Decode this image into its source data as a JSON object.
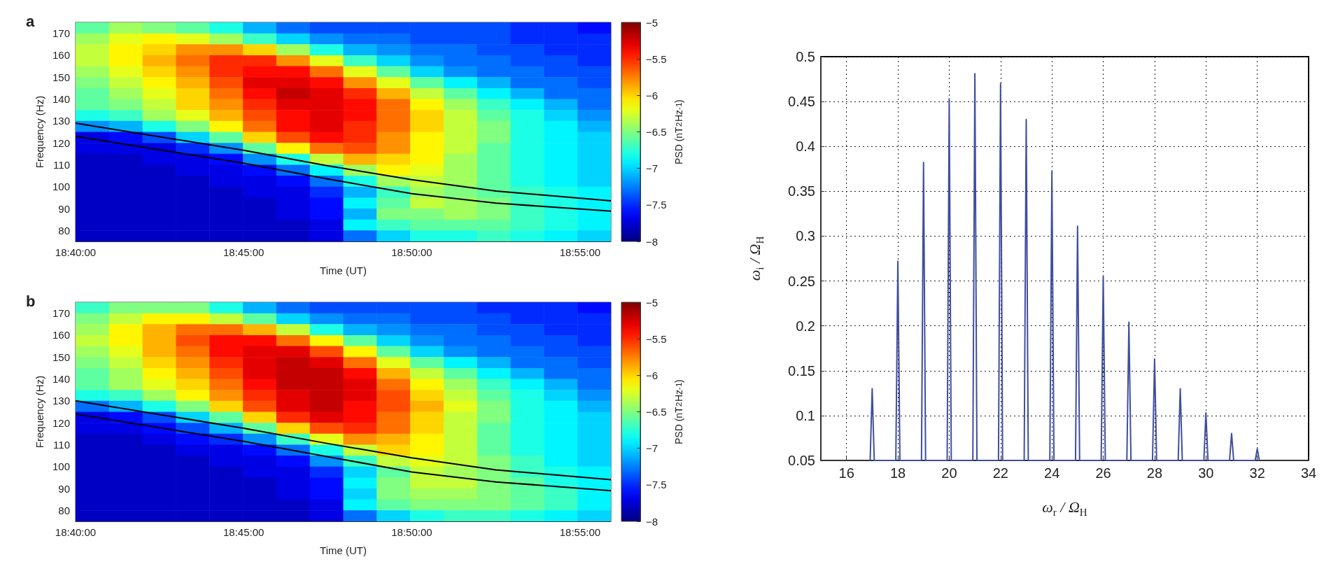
{
  "chart_data": [
    {
      "type": "heatmap",
      "title": "a",
      "xlabel": "Time (UT)",
      "ylabel": "Frequency (Hz)",
      "clabel": "PSD (nT$^{2}$Hz$^{-1}$)",
      "xlim": [
        18.6667,
        18.932
      ],
      "ylim": [
        75,
        175
      ],
      "xticks": [
        {
          "value": 18.6667,
          "label": "18:40:00"
        },
        {
          "value": 18.75,
          "label": "18:45:00"
        },
        {
          "value": 18.8333,
          "label": "18:50:00"
        },
        {
          "value": 18.9167,
          "label": "18:55:00"
        }
      ],
      "yticks": [
        80,
        90,
        100,
        110,
        120,
        130,
        140,
        150,
        160,
        170
      ],
      "clim": [
        -8,
        -5
      ],
      "cticks": [
        {
          "value": -8,
          "label": "−8"
        },
        {
          "value": -7.5,
          "label": "−7.5"
        },
        {
          "value": -7,
          "label": "−7"
        },
        {
          "value": -6.5,
          "label": "−6.5"
        },
        {
          "value": -6,
          "label": "−6"
        },
        {
          "value": -5.5,
          "label": "−5.5"
        },
        {
          "value": -5,
          "label": "−5"
        }
      ],
      "cells": [
        [
          -6.6,
          -6.4,
          -6.5,
          -6.6,
          -6.8,
          -7.1,
          -7.3,
          -7.4,
          -7.4,
          -7.4,
          -7.4,
          -7.4,
          -7.4,
          -7.5,
          -7.5,
          -7.6
        ],
        [
          -6.4,
          -6.2,
          -6.1,
          -6.2,
          -6.4,
          -6.7,
          -7.0,
          -7.2,
          -7.3,
          -7.3,
          -7.4,
          -7.4,
          -7.4,
          -7.5,
          -7.5,
          -7.5
        ],
        [
          -6.3,
          -6.1,
          -6.0,
          -5.8,
          -5.8,
          -6.0,
          -6.4,
          -6.8,
          -7.1,
          -7.2,
          -7.3,
          -7.3,
          -7.4,
          -7.4,
          -7.5,
          -7.5
        ],
        [
          -6.3,
          -6.1,
          -5.9,
          -5.7,
          -5.5,
          -5.5,
          -5.8,
          -6.2,
          -6.7,
          -7.0,
          -7.2,
          -7.3,
          -7.3,
          -7.4,
          -7.4,
          -7.5
        ],
        [
          -6.4,
          -6.2,
          -6.0,
          -5.8,
          -5.5,
          -5.4,
          -5.4,
          -5.7,
          -6.2,
          -6.6,
          -7.0,
          -7.2,
          -7.3,
          -7.3,
          -7.4,
          -7.4
        ],
        [
          -6.5,
          -6.3,
          -6.1,
          -5.9,
          -5.6,
          -5.3,
          -5.3,
          -5.4,
          -5.8,
          -6.2,
          -6.6,
          -6.9,
          -7.1,
          -7.3,
          -7.3,
          -7.4
        ],
        [
          -6.6,
          -6.4,
          -6.2,
          -6.0,
          -5.7,
          -5.4,
          -5.2,
          -5.3,
          -5.5,
          -5.9,
          -6.3,
          -6.6,
          -6.9,
          -7.1,
          -7.3,
          -7.3
        ],
        [
          -6.6,
          -6.5,
          -6.3,
          -6.0,
          -5.8,
          -5.5,
          -5.3,
          -5.3,
          -5.4,
          -5.7,
          -6.1,
          -6.4,
          -6.7,
          -6.9,
          -7.1,
          -7.3
        ],
        [
          -6.8,
          -6.7,
          -6.4,
          -6.2,
          -5.9,
          -5.6,
          -5.4,
          -5.3,
          -5.4,
          -5.7,
          -6.0,
          -6.3,
          -6.6,
          -6.8,
          -7.0,
          -7.2
        ],
        [
          -7.2,
          -7.1,
          -6.8,
          -6.5,
          -6.1,
          -5.7,
          -5.4,
          -5.3,
          -5.5,
          -5.7,
          -6.0,
          -6.3,
          -6.5,
          -6.8,
          -6.9,
          -7.1
        ],
        [
          -7.7,
          -7.6,
          -7.4,
          -7.0,
          -6.6,
          -6.0,
          -5.6,
          -5.4,
          -5.5,
          -5.8,
          -6.1,
          -6.3,
          -6.5,
          -6.8,
          -6.9,
          -7.0
        ],
        [
          -7.7,
          -7.7,
          -7.7,
          -7.5,
          -7.2,
          -6.6,
          -6.1,
          -5.7,
          -5.6,
          -5.8,
          -6.1,
          -6.3,
          -6.6,
          -6.8,
          -6.9,
          -7.0
        ],
        [
          -7.8,
          -7.8,
          -7.7,
          -7.7,
          -7.6,
          -7.2,
          -6.8,
          -6.3,
          -5.9,
          -6.0,
          -6.1,
          -6.4,
          -6.6,
          -6.8,
          -6.9,
          -7.0
        ],
        [
          -7.8,
          -7.8,
          -7.8,
          -7.7,
          -7.7,
          -7.6,
          -7.3,
          -6.9,
          -6.4,
          -6.1,
          -6.2,
          -6.4,
          -6.6,
          -6.8,
          -6.9,
          -7.0
        ],
        [
          -7.8,
          -7.8,
          -7.8,
          -7.8,
          -7.7,
          -7.7,
          -7.6,
          -7.3,
          -6.8,
          -6.4,
          -6.3,
          -6.4,
          -6.6,
          -6.8,
          -6.9,
          -7.0
        ],
        [
          -7.8,
          -7.8,
          -7.8,
          -7.8,
          -7.8,
          -7.7,
          -7.7,
          -7.5,
          -7.1,
          -6.7,
          -6.4,
          -6.5,
          -6.6,
          -6.7,
          -6.8,
          -6.9
        ],
        [
          -7.8,
          -7.8,
          -7.8,
          -7.8,
          -7.8,
          -7.8,
          -7.7,
          -7.6,
          -6.9,
          -6.6,
          -6.3,
          -6.4,
          -6.5,
          -6.7,
          -6.8,
          -6.9
        ],
        [
          -7.8,
          -7.8,
          -7.8,
          -7.8,
          -7.8,
          -7.8,
          -7.7,
          -7.6,
          -7.1,
          -6.5,
          -6.5,
          -6.4,
          -6.5,
          -6.7,
          -6.8,
          -6.9
        ],
        [
          -7.8,
          -7.8,
          -7.8,
          -7.8,
          -7.8,
          -7.8,
          -7.8,
          -7.7,
          -6.9,
          -6.7,
          -6.6,
          -6.6,
          -6.6,
          -6.7,
          -6.8,
          -6.9
        ],
        [
          -7.8,
          -7.8,
          -7.8,
          -7.8,
          -7.8,
          -7.8,
          -7.8,
          -7.7,
          -7.3,
          -7.0,
          -6.8,
          -6.8,
          -6.7,
          -6.8,
          -6.9,
          -7.0
        ]
      ],
      "series": [
        {
          "type": "line",
          "color": "#000000",
          "x": [
            18.6667,
            18.75,
            18.7917,
            18.8333,
            18.875,
            18.932
          ],
          "values": [
            129,
            116.6,
            109.5,
            103.2,
            98,
            93.5
          ]
        },
        {
          "type": "line",
          "color": "#000000",
          "x": [
            18.6667,
            18.75,
            18.7917,
            18.8333,
            18.875,
            18.932
          ],
          "values": [
            123,
            110.7,
            103.5,
            96.8,
            92.5,
            88.8
          ]
        }
      ]
    },
    {
      "type": "heatmap",
      "title": "b",
      "xlabel": "Time (UT)",
      "ylabel": "Frequency (Hz)",
      "clabel": "PSD (nT$^{2}$Hz$^{-1}$)",
      "xlim": [
        18.6667,
        18.932
      ],
      "ylim": [
        75,
        175
      ],
      "xticks": [
        {
          "value": 18.6667,
          "label": "18:40:00"
        },
        {
          "value": 18.75,
          "label": "18:45:00"
        },
        {
          "value": 18.8333,
          "label": "18:50:00"
        },
        {
          "value": 18.9167,
          "label": "18:55:00"
        }
      ],
      "yticks": [
        80,
        90,
        100,
        110,
        120,
        130,
        140,
        150,
        160,
        170
      ],
      "clim": [
        -8,
        -5
      ],
      "cticks": [
        {
          "value": -8,
          "label": "−8"
        },
        {
          "value": -7.5,
          "label": "−7.5"
        },
        {
          "value": -7,
          "label": "−7"
        },
        {
          "value": -6.5,
          "label": "−6.5"
        },
        {
          "value": -6,
          "label": "−6"
        },
        {
          "value": -5.5,
          "label": "−5.5"
        },
        {
          "value": -5,
          "label": "−5"
        }
      ],
      "cells": [
        [
          -6.7,
          -6.5,
          -6.5,
          -6.5,
          -6.8,
          -7.1,
          -7.3,
          -7.4,
          -7.4,
          -7.4,
          -7.4,
          -7.4,
          -7.5,
          -7.5,
          -7.5,
          -7.6
        ],
        [
          -6.5,
          -6.3,
          -6.1,
          -6.1,
          -6.3,
          -6.6,
          -7.0,
          -7.2,
          -7.3,
          -7.3,
          -7.4,
          -7.4,
          -7.4,
          -7.5,
          -7.5,
          -7.5
        ],
        [
          -6.4,
          -6.1,
          -5.9,
          -5.7,
          -5.7,
          -5.9,
          -6.3,
          -6.8,
          -7.1,
          -7.2,
          -7.3,
          -7.3,
          -7.4,
          -7.4,
          -7.5,
          -7.5
        ],
        [
          -6.3,
          -6.1,
          -5.9,
          -5.6,
          -5.4,
          -5.4,
          -5.7,
          -6.1,
          -6.6,
          -7.0,
          -7.2,
          -7.3,
          -7.3,
          -7.4,
          -7.4,
          -7.5
        ],
        [
          -6.4,
          -6.2,
          -5.9,
          -5.7,
          -5.4,
          -5.3,
          -5.3,
          -5.6,
          -6.1,
          -6.6,
          -7.0,
          -7.2,
          -7.3,
          -7.3,
          -7.4,
          -7.4
        ],
        [
          -6.5,
          -6.3,
          -6.0,
          -5.8,
          -5.5,
          -5.3,
          -5.2,
          -5.3,
          -5.7,
          -6.2,
          -6.6,
          -6.9,
          -7.1,
          -7.3,
          -7.3,
          -7.4
        ],
        [
          -6.6,
          -6.4,
          -6.1,
          -5.9,
          -5.6,
          -5.3,
          -5.2,
          -5.2,
          -5.4,
          -5.9,
          -6.3,
          -6.6,
          -6.9,
          -7.1,
          -7.3,
          -7.3
        ],
        [
          -6.6,
          -6.4,
          -6.2,
          -6.0,
          -5.7,
          -5.4,
          -5.2,
          -5.2,
          -5.3,
          -5.7,
          -6.1,
          -6.4,
          -6.7,
          -6.9,
          -7.1,
          -7.3
        ],
        [
          -6.8,
          -6.7,
          -6.4,
          -6.1,
          -5.8,
          -5.5,
          -5.3,
          -5.2,
          -5.3,
          -5.6,
          -6.0,
          -6.3,
          -6.6,
          -6.8,
          -7.0,
          -7.2
        ],
        [
          -7.3,
          -7.1,
          -6.8,
          -6.5,
          -6.0,
          -5.6,
          -5.3,
          -5.2,
          -5.4,
          -5.6,
          -5.9,
          -6.2,
          -6.5,
          -6.8,
          -6.9,
          -7.1
        ],
        [
          -7.7,
          -7.6,
          -7.4,
          -7.0,
          -6.6,
          -6.0,
          -5.5,
          -5.3,
          -5.4,
          -5.7,
          -6.0,
          -6.3,
          -6.5,
          -6.8,
          -6.9,
          -7.0
        ],
        [
          -7.7,
          -7.7,
          -7.6,
          -7.4,
          -7.1,
          -6.6,
          -6.0,
          -5.6,
          -5.5,
          -5.7,
          -6.0,
          -6.3,
          -6.6,
          -6.8,
          -6.9,
          -7.0
        ],
        [
          -7.8,
          -7.8,
          -7.7,
          -7.6,
          -7.5,
          -7.2,
          -6.7,
          -6.2,
          -5.8,
          -5.9,
          -6.1,
          -6.3,
          -6.6,
          -6.8,
          -6.9,
          -7.0
        ],
        [
          -7.8,
          -7.8,
          -7.8,
          -7.7,
          -7.7,
          -7.6,
          -7.3,
          -6.8,
          -6.3,
          -6.0,
          -6.1,
          -6.3,
          -6.6,
          -6.8,
          -6.9,
          -7.0
        ],
        [
          -7.8,
          -7.8,
          -7.8,
          -7.8,
          -7.7,
          -7.7,
          -7.6,
          -7.2,
          -6.7,
          -6.3,
          -6.2,
          -6.3,
          -6.5,
          -6.7,
          -6.9,
          -7.0
        ],
        [
          -7.8,
          -7.8,
          -7.8,
          -7.8,
          -7.8,
          -7.7,
          -7.7,
          -7.5,
          -7.0,
          -6.6,
          -6.3,
          -6.4,
          -6.5,
          -6.7,
          -6.8,
          -6.9
        ],
        [
          -7.8,
          -7.8,
          -7.8,
          -7.8,
          -7.8,
          -7.8,
          -7.7,
          -7.6,
          -6.9,
          -6.5,
          -6.3,
          -6.3,
          -6.5,
          -6.6,
          -6.8,
          -6.9
        ],
        [
          -7.8,
          -7.8,
          -7.8,
          -7.8,
          -7.8,
          -7.8,
          -7.7,
          -7.6,
          -7.0,
          -6.5,
          -6.4,
          -6.4,
          -6.5,
          -6.6,
          -6.7,
          -6.9
        ],
        [
          -7.8,
          -7.8,
          -7.8,
          -7.8,
          -7.8,
          -7.8,
          -7.8,
          -7.7,
          -6.9,
          -6.6,
          -6.5,
          -6.5,
          -6.5,
          -6.6,
          -6.7,
          -6.9
        ],
        [
          -7.8,
          -7.8,
          -7.8,
          -7.8,
          -7.8,
          -7.8,
          -7.8,
          -7.7,
          -7.3,
          -7.0,
          -6.8,
          -6.7,
          -6.7,
          -6.8,
          -6.9,
          -7.0
        ]
      ],
      "series": [
        {
          "type": "line",
          "color": "#000000",
          "x": [
            18.6667,
            18.75,
            18.7917,
            18.8333,
            18.875,
            18.932
          ],
          "values": [
            130,
            117.5,
            110.5,
            104,
            98.5,
            94
          ]
        },
        {
          "type": "line",
          "color": "#000000",
          "x": [
            18.6667,
            18.75,
            18.7917,
            18.8333,
            18.875,
            18.932
          ],
          "values": [
            124,
            111.5,
            104.5,
            97.5,
            93,
            89
          ]
        }
      ]
    },
    {
      "type": "line",
      "xlabel": "ω$_{r}$ / Ω$_{H}$",
      "ylabel": "ω$_{i}$ / Ω$_{H}$",
      "xlim": [
        15,
        34
      ],
      "ylim": [
        0.05,
        0.5
      ],
      "xticks": [
        16,
        18,
        20,
        22,
        24,
        26,
        28,
        30,
        32,
        34
      ],
      "yticks": [
        0.05,
        0.1,
        0.15,
        0.2,
        0.25,
        0.3,
        0.35,
        0.4,
        0.45,
        0.5
      ],
      "grid": true,
      "marker": "none",
      "series": [
        {
          "color": "#3f4ea0",
          "x": [
            16.92,
            17,
            17.08,
            17.92,
            18,
            18.08,
            18.92,
            19,
            19.08,
            19.92,
            20,
            20.08,
            20.92,
            21,
            21.08,
            21.92,
            22,
            22.08,
            22.92,
            23,
            23.08,
            23.92,
            24,
            24.08,
            24.92,
            25,
            25.08,
            25.92,
            26,
            26.08,
            26.92,
            27,
            27.08,
            27.92,
            28,
            28.08,
            28.92,
            29,
            29.08,
            29.92,
            30,
            30.08,
            30.92,
            31,
            31.08,
            31.92,
            32,
            32.08
          ],
          "values": [
            0.05,
            0.13,
            0.05,
            0.05,
            0.272,
            0.05,
            0.05,
            0.382,
            0.05,
            0.05,
            0.453,
            0.05,
            0.05,
            0.481,
            0.05,
            0.05,
            0.47,
            0.05,
            0.05,
            0.43,
            0.05,
            0.05,
            0.372,
            0.05,
            0.05,
            0.311,
            0.05,
            0.05,
            0.255,
            0.05,
            0.05,
            0.204,
            0.05,
            0.05,
            0.163,
            0.05,
            0.05,
            0.13,
            0.05,
            0.05,
            0.103,
            0.05,
            0.05,
            0.08,
            0.05,
            0.05,
            0.063,
            0.05
          ]
        }
      ]
    }
  ]
}
